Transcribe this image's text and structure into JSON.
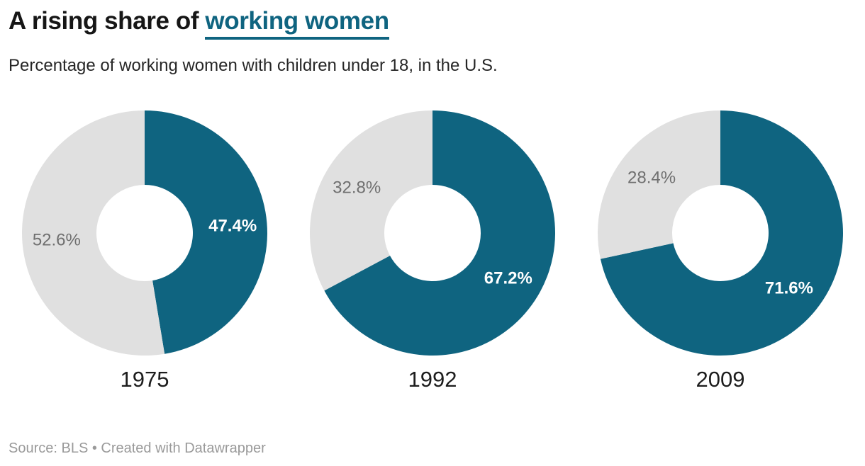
{
  "header": {
    "title_prefix": "A rising share of ",
    "title_highlight": "working women",
    "subtitle": "Percentage of working women with children under 18, in the U.S."
  },
  "footer": {
    "text": "Source: BLS • Created with Datawrapper"
  },
  "chart_data": {
    "type": "pie",
    "variant": "donut",
    "title": "A rising share of working women",
    "subtitle": "Percentage of working women with children under 18, in the U.S.",
    "source": "Source: BLS • Created with Datawrapper",
    "unit": "%",
    "start_angle_deg": 0,
    "direction": "clockwise",
    "inner_radius_ratio": 0.393,
    "colors": {
      "share": "#0f6480",
      "remainder": "#e0e0e0"
    },
    "label_colors": {
      "share": "#ffffff",
      "remainder": "#6f6f6f"
    },
    "donuts": [
      {
        "year": "1975",
        "share": 47.4,
        "remainder": 52.6,
        "share_label": "47.4%",
        "remainder_label": "52.6%"
      },
      {
        "year": "1992",
        "share": 67.2,
        "remainder": 32.8,
        "share_label": "67.2%",
        "remainder_label": "32.8%"
      },
      {
        "year": "2009",
        "share": 71.6,
        "remainder": 28.4,
        "share_label": "71.6%",
        "remainder_label": "28.4%"
      }
    ]
  }
}
